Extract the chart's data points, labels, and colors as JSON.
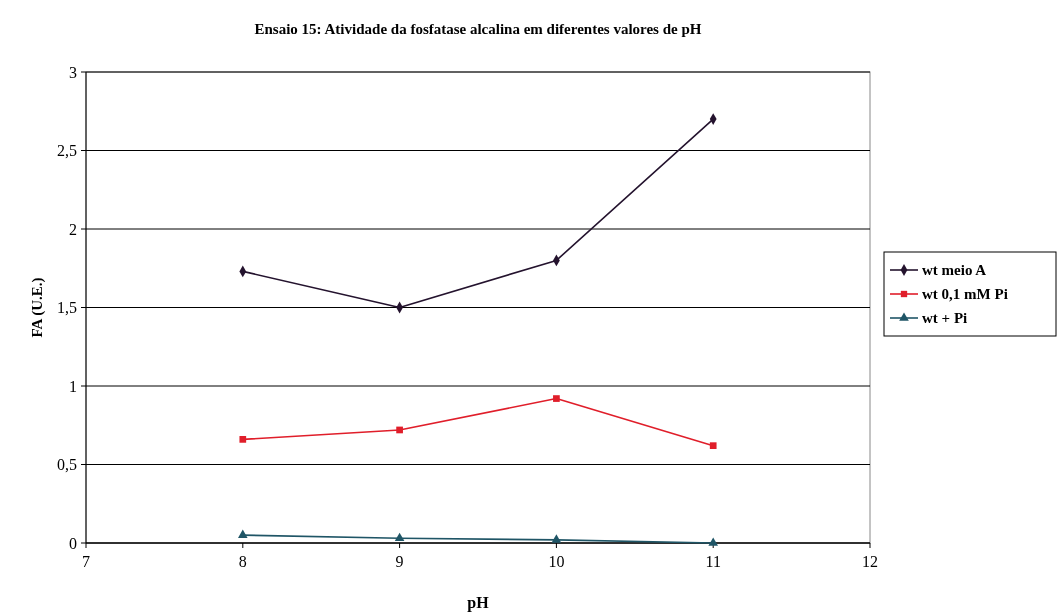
{
  "chart_data": {
    "type": "line",
    "title": "Ensaio 15: Atividade da fosfatase alcalina em diferentes valores de pH",
    "xlabel": "pH",
    "ylabel": "FA (U.E.)",
    "x": [
      8,
      9,
      10,
      11
    ],
    "series": [
      {
        "name": "wt meio A",
        "color": "#24132e",
        "marker": "diamond",
        "values": [
          1.73,
          1.5,
          1.8,
          2.7
        ]
      },
      {
        "name": "wt 0,1 mM Pi",
        "color": "#e01e2a",
        "marker": "square",
        "values": [
          0.66,
          0.72,
          0.92,
          0.62
        ]
      },
      {
        "name": "wt + Pi",
        "color": "#1f5566",
        "marker": "triangle",
        "values": [
          0.05,
          0.03,
          0.02,
          0.0
        ]
      }
    ],
    "xlim": [
      7,
      12
    ],
    "xticks": [
      7,
      8,
      9,
      10,
      11,
      12
    ],
    "ylim": [
      0,
      3
    ],
    "yticks": [
      0,
      {
        "value": 0.5,
        "label": "0,5"
      },
      1,
      {
        "value": 1.5,
        "label": "1,5"
      },
      2,
      {
        "value": 2.5,
        "label": "2,5"
      },
      3
    ],
    "grid": "y",
    "legend": "right",
    "line_style": "solid"
  }
}
